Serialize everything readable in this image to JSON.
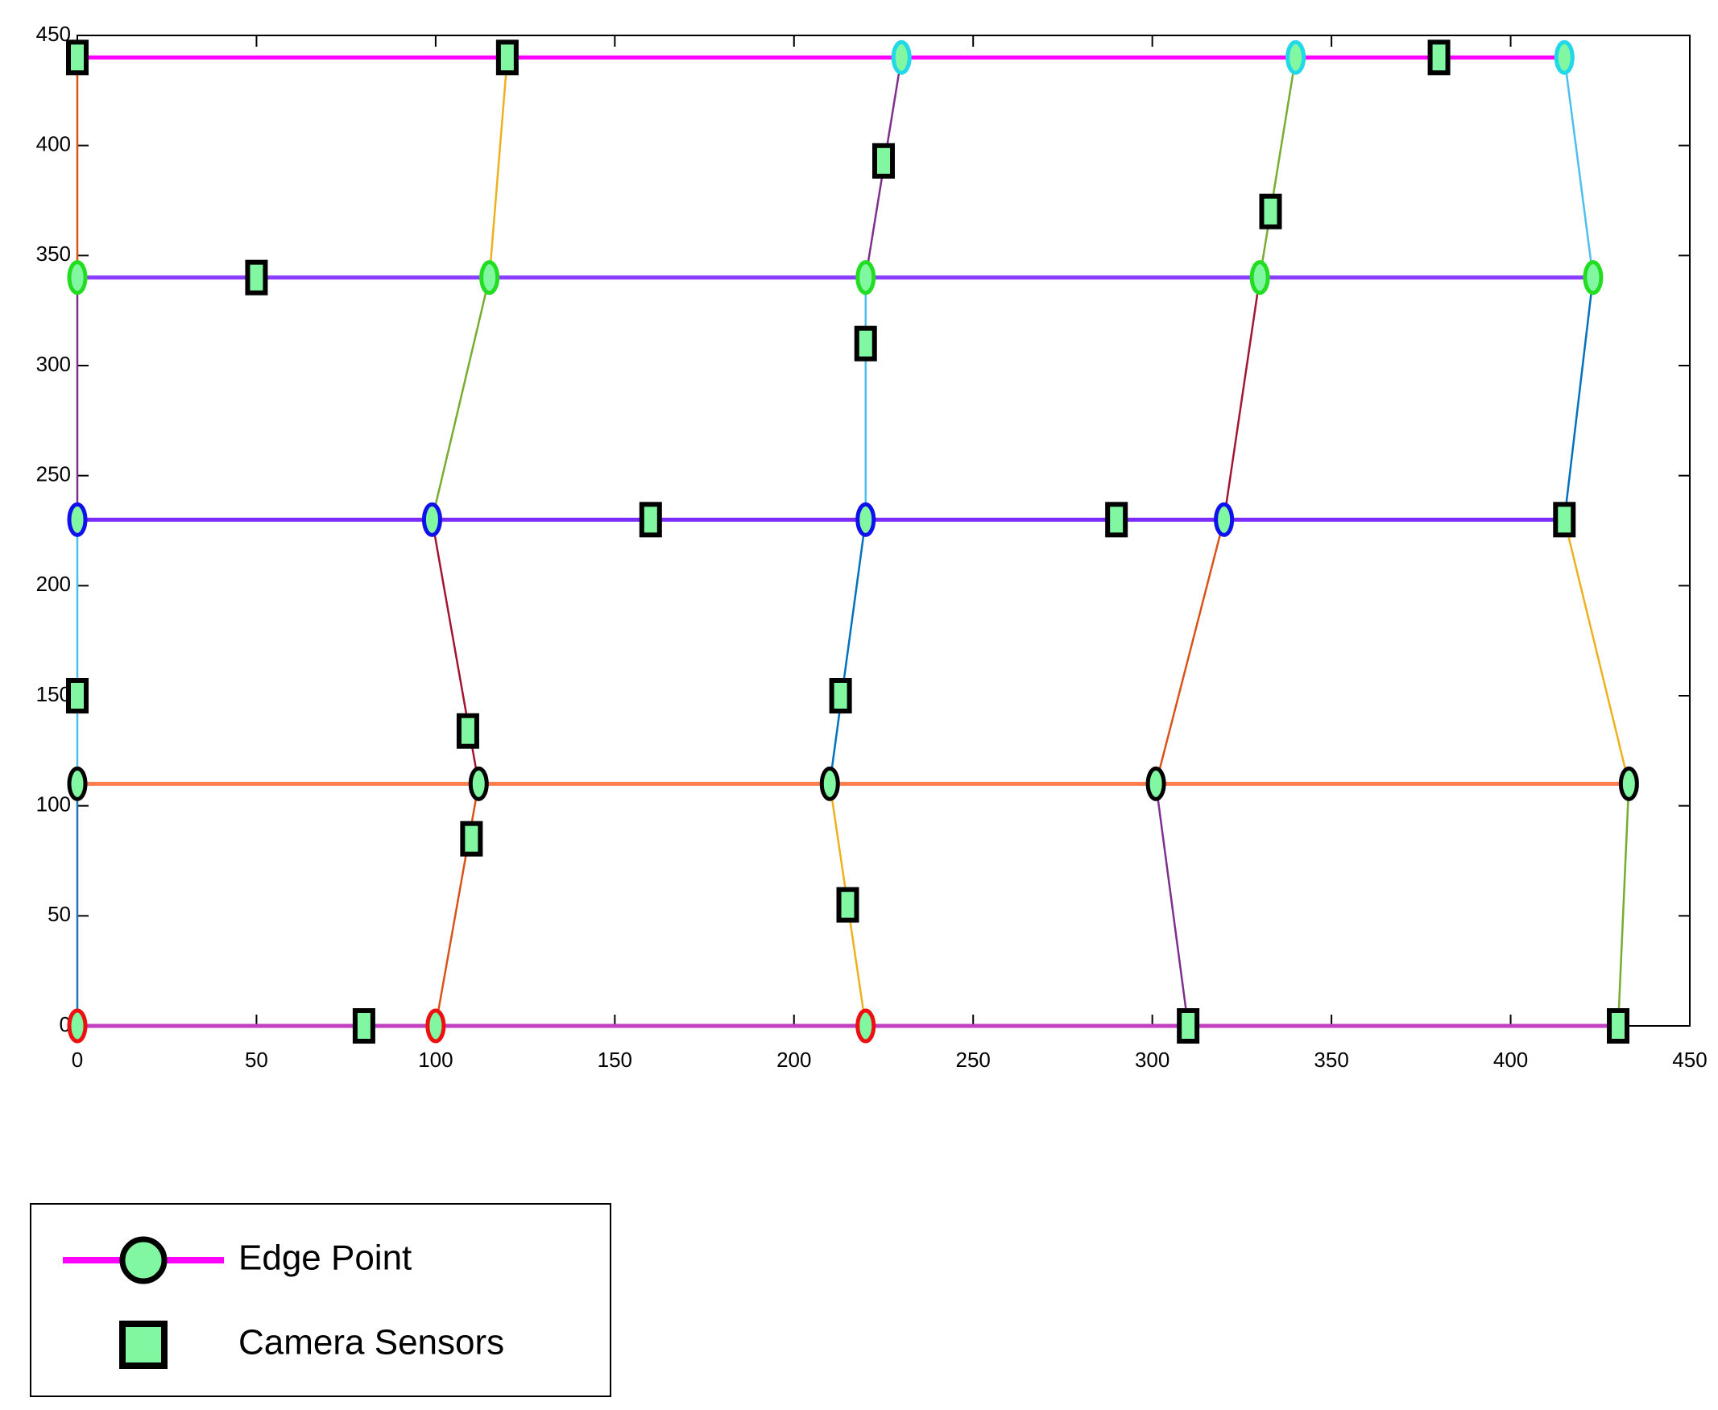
{
  "chart_data": {
    "type": "network",
    "xlim": [
      0,
      450
    ],
    "ylim": [
      0,
      450
    ],
    "xticks": [
      0,
      50,
      100,
      150,
      200,
      250,
      300,
      350,
      400,
      450
    ],
    "yticks": [
      0,
      50,
      100,
      150,
      200,
      250,
      300,
      350,
      400,
      450
    ],
    "grid": false,
    "legend": "lower left",
    "edges": [
      {
        "x": [
          0,
          415
        ],
        "y": [
          440,
          440
        ],
        "color": "#ff00ff"
      },
      {
        "x": [
          0,
          423
        ],
        "y": [
          340,
          340
        ],
        "color": "#8a3cff"
      },
      {
        "x": [
          0,
          415
        ],
        "y": [
          230,
          230
        ],
        "color": "#7a2cff"
      },
      {
        "x": [
          0,
          433
        ],
        "y": [
          110,
          110
        ],
        "color": "#ff7f50"
      },
      {
        "x": [
          0,
          430
        ],
        "y": [
          0,
          0
        ],
        "color": "#c040c0"
      },
      {
        "x": [
          0,
          0
        ],
        "y": [
          0,
          110
        ],
        "color": "#1f77b4"
      },
      {
        "x": [
          0,
          0
        ],
        "y": [
          110,
          230
        ],
        "color": "#4dbeee"
      },
      {
        "x": [
          0,
          0
        ],
        "y": [
          230,
          340
        ],
        "color": "#7e2f8e"
      },
      {
        "x": [
          0,
          0
        ],
        "y": [
          340,
          440
        ],
        "color": "#d95319"
      },
      {
        "x": [
          100,
          112
        ],
        "y": [
          0,
          110
        ],
        "color": "#d95319"
      },
      {
        "x": [
          112,
          99
        ],
        "y": [
          110,
          230
        ],
        "color": "#a2142f"
      },
      {
        "x": [
          99,
          115
        ],
        "y": [
          230,
          340
        ],
        "color": "#77ac30"
      },
      {
        "x": [
          115,
          120
        ],
        "y": [
          340,
          440
        ],
        "color": "#edb120"
      },
      {
        "x": [
          220,
          210
        ],
        "y": [
          0,
          110
        ],
        "color": "#edb120"
      },
      {
        "x": [
          210,
          220
        ],
        "y": [
          110,
          230
        ],
        "color": "#0072bd"
      },
      {
        "x": [
          220,
          220
        ],
        "y": [
          230,
          340
        ],
        "color": "#4dbeee"
      },
      {
        "x": [
          220,
          230
        ],
        "y": [
          340,
          440
        ],
        "color": "#7e2f8e"
      },
      {
        "x": [
          310,
          301
        ],
        "y": [
          0,
          110
        ],
        "color": "#7e2f8e"
      },
      {
        "x": [
          301,
          320
        ],
        "y": [
          110,
          230
        ],
        "color": "#d95319"
      },
      {
        "x": [
          320,
          330
        ],
        "y": [
          230,
          340
        ],
        "color": "#a2142f"
      },
      {
        "x": [
          330,
          340
        ],
        "y": [
          340,
          440
        ],
        "color": "#77ac30"
      },
      {
        "x": [
          430,
          433
        ],
        "y": [
          0,
          110
        ],
        "color": "#77ac30"
      },
      {
        "x": [
          433,
          415
        ],
        "y": [
          110,
          230
        ],
        "color": "#edb120"
      },
      {
        "x": [
          415,
          423
        ],
        "y": [
          230,
          340
        ],
        "color": "#0072bd"
      },
      {
        "x": [
          423,
          415
        ],
        "y": [
          340,
          440
        ],
        "color": "#4dbeee"
      }
    ],
    "series": [
      {
        "name": "Edge Point",
        "marker": "circle",
        "color": "#ff00ff",
        "marker_fill": "#80f7a0",
        "x": [
          230,
          340,
          415,
          0,
          115,
          220,
          330,
          423,
          0,
          99,
          220,
          320,
          0,
          112,
          210,
          301,
          433,
          0,
          100,
          220
        ],
        "y": [
          440,
          440,
          440,
          340,
          340,
          340,
          340,
          340,
          230,
          230,
          230,
          230,
          110,
          110,
          110,
          110,
          110,
          0,
          0,
          0
        ],
        "edge_colors": [
          "#22d8e8",
          "#22d8e8",
          "#22d8e8",
          "#22dd22",
          "#22dd22",
          "#22dd22",
          "#22dd22",
          "#22dd22",
          "#1010ee",
          "#1010ee",
          "#1010ee",
          "#1010ee",
          "#000000",
          "#000000",
          "#000000",
          "#000000",
          "#000000",
          "#ee1010",
          "#ee1010",
          "#ee1010"
        ]
      },
      {
        "name": "Camera Sensors",
        "marker": "square",
        "color": "#000000",
        "marker_fill": "#80f7a0",
        "x": [
          0,
          120,
          380,
          225,
          333,
          50,
          220,
          160,
          290,
          415,
          0,
          109,
          213,
          110,
          215,
          80,
          310,
          430
        ],
        "y": [
          440,
          440,
          440,
          393,
          370,
          340,
          310,
          230,
          230,
          230,
          150,
          134,
          150,
          85,
          55,
          0,
          0,
          0
        ]
      }
    ]
  }
}
